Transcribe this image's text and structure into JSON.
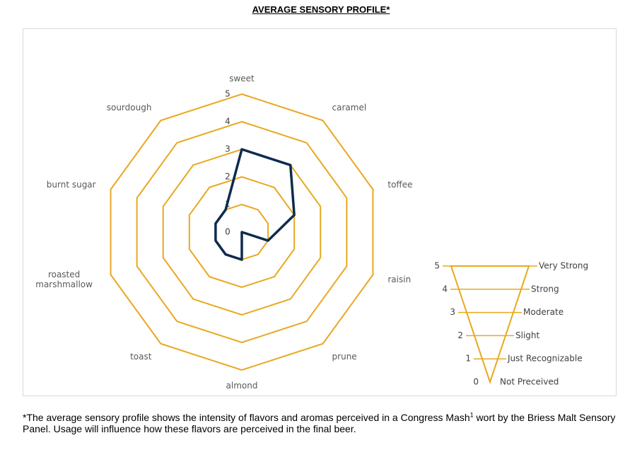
{
  "chart_data": {
    "type": "radar",
    "title": "AVERAGE SENSORY PROFILE*",
    "categories": [
      "sweet",
      "caramel",
      "toffee",
      "raisin",
      "prune",
      "almond",
      "toast",
      "roasted marshmallow",
      "burnt sugar",
      "sourdough"
    ],
    "values": [
      3,
      3,
      2,
      1,
      0,
      1,
      1,
      1,
      1,
      1
    ],
    "color": "#0d2b4e",
    "grid_color": "#e8a820",
    "rlim": [
      0,
      5
    ],
    "rticks": [
      0,
      1,
      2,
      3,
      4,
      5
    ]
  },
  "intensity_scale": {
    "levels": [
      {
        "value": 5,
        "label": "Very Strong"
      },
      {
        "value": 4,
        "label": "Strong"
      },
      {
        "value": 3,
        "label": "Moderate"
      },
      {
        "value": 2,
        "label": "Slight"
      },
      {
        "value": 1,
        "label": "Just Recognizable"
      },
      {
        "value": 0,
        "label": "Not Preceived"
      }
    ]
  },
  "footnote": {
    "text_before": "*The average sensory profile shows the intensity of flavors and aromas perceived in a Congress Mash",
    "superscript": "1",
    "text_after": " wort by the Briess Malt Sensory Panel. Usage will influence how these flavors are perceived in the final beer."
  }
}
